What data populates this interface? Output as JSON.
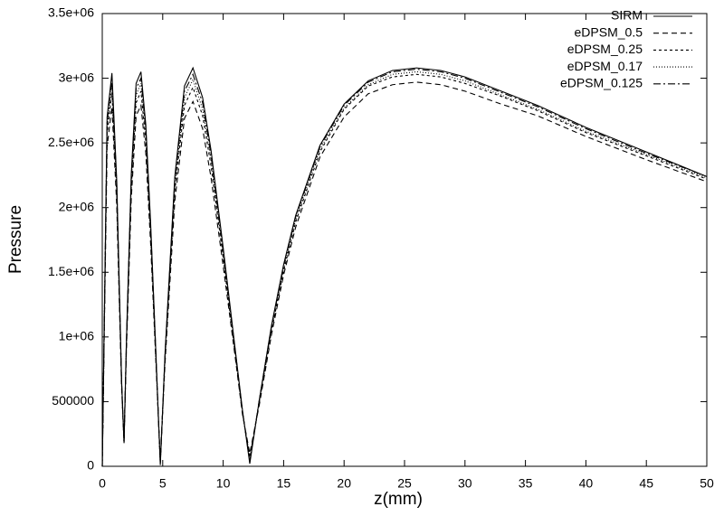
{
  "chart_data": {
    "type": "line",
    "x_label": "z(mm)",
    "y_label": "Pressure",
    "x": [
      0,
      0.4,
      0.8,
      1.2,
      1.6,
      1.8,
      2.0,
      2.4,
      2.8,
      3.2,
      3.6,
      4.0,
      4.4,
      4.8,
      5.2,
      6.0,
      6.8,
      7.5,
      8.3,
      9,
      10,
      11,
      11.6,
      12.2,
      13,
      14,
      15,
      16,
      18,
      20,
      22,
      24,
      26,
      28,
      30,
      33,
      36,
      40,
      45,
      50
    ],
    "series": [
      {
        "name": "SIRM",
        "color": "#000000",
        "dash": "none",
        "values": [
          0,
          2700000.0,
          3040000.0,
          2200000.0,
          660000.0,
          180000.0,
          980000.0,
          2260000.0,
          2960000.0,
          3050000.0,
          2640000.0,
          1880000.0,
          960000.0,
          10000.0,
          890000.0,
          2240000.0,
          2940000.0,
          3080000.0,
          2850000.0,
          2440000.0,
          1690000.0,
          900000.0,
          430000.0,
          20000.0,
          520000.0,
          1090000.0,
          1560000.0,
          1940000.0,
          2480000.0,
          2800000.0,
          2980000.0,
          3060000.0,
          3080000.0,
          3060000.0,
          3010000.0,
          2900000.0,
          2790000.0,
          2620000.0,
          2430000.0,
          2240000.0
        ]
      },
      {
        "name": "eDPSM_0.5",
        "color": "#000000",
        "dash": "6 4",
        "values": [
          0,
          2470000.0,
          2780000.0,
          2010000.0,
          600000.0,
          200000.0,
          900000.0,
          2070000.0,
          2710000.0,
          2790000.0,
          2420000.0,
          1720000.0,
          880000.0,
          50000.0,
          810000.0,
          2050000.0,
          2690000.0,
          2820000.0,
          2610000.0,
          2230000.0,
          1550000.0,
          840000.0,
          400000.0,
          100000.0,
          480000.0,
          1020000.0,
          1480000.0,
          1850000.0,
          2390000.0,
          2700000.0,
          2880000.0,
          2950000.0,
          2970000.0,
          2950000.0,
          2900000.0,
          2800000.0,
          2710000.0,
          2550000.0,
          2370000.0,
          2200000.0
        ]
      },
      {
        "name": "eDPSM_0.25",
        "color": "#000000",
        "dash": "3 3",
        "values": [
          0,
          2570000.0,
          2890000.0,
          2090000.0,
          630000.0,
          190000.0,
          930000.0,
          2150000.0,
          2810000.0,
          2900000.0,
          2510000.0,
          1790000.0,
          910000.0,
          30000.0,
          850000.0,
          2130000.0,
          2790000.0,
          2930000.0,
          2710000.0,
          2320000.0,
          1610000.0,
          860000.0,
          410000.0,
          70000.0,
          500000.0,
          1050000.0,
          1510000.0,
          1890000.0,
          2430000.0,
          2760000.0,
          2940000.0,
          3010000.0,
          3030000.0,
          3010000.0,
          2960000.0,
          2860000.0,
          2750000.0,
          2580000.0,
          2400000.0,
          2220000.0
        ]
      },
      {
        "name": "eDPSM_0.17",
        "color": "#000000",
        "dash": "1 2",
        "values": [
          0,
          2620000.0,
          2950000.0,
          2130000.0,
          640000.0,
          180000.0,
          950000.0,
          2190000.0,
          2870000.0,
          2960000.0,
          2560000.0,
          1820000.0,
          930000.0,
          20000.0,
          860000.0,
          2170000.0,
          2850000.0,
          2990000.0,
          2760000.0,
          2370000.0,
          1640000.0,
          880000.0,
          420000.0,
          50000.0,
          510000.0,
          1070000.0,
          1530000.0,
          1910000.0,
          2450000.0,
          2770000.0,
          2950000.0,
          3030000.0,
          3050000.0,
          3030000.0,
          2980000.0,
          2870000.0,
          2760000.0,
          2590000.0,
          2410000.0,
          2230000.0
        ]
      },
      {
        "name": "eDPSM_0.125",
        "color": "#000000",
        "dash": "8 3 2 3",
        "values": [
          0,
          2660000.0,
          2990000.0,
          2170000.0,
          650000.0,
          180000.0,
          970000.0,
          2230000.0,
          2920000.0,
          3000000.0,
          2600000.0,
          1850000.0,
          950000.0,
          20000.0,
          880000.0,
          2210000.0,
          2900000.0,
          3030000.0,
          2810000.0,
          2400000.0,
          1660000.0,
          890000.0,
          420000.0,
          40000.0,
          520000.0,
          1080000.0,
          1550000.0,
          1930000.0,
          2470000.0,
          2790000.0,
          2970000.0,
          3050000.0,
          3070000.0,
          3050000.0,
          3000000.0,
          2890000.0,
          2780000.0,
          2610000.0,
          2420000.0,
          2240000.0
        ]
      }
    ],
    "xlim": [
      0,
      50
    ],
    "xticks": [
      0,
      5,
      10,
      15,
      20,
      25,
      30,
      35,
      40,
      45,
      50
    ],
    "ylim": [
      0,
      3500000
    ],
    "yticks": [
      0,
      500000,
      {
        "value": 1000000,
        "label": "1e+06"
      },
      {
        "value": 1500000,
        "label": "1.5e+06"
      },
      {
        "value": 2000000,
        "label": "2e+06"
      },
      {
        "value": 2500000,
        "label": "2.5e+06"
      },
      {
        "value": 3000000,
        "label": "3e+06"
      },
      {
        "value": 3500000,
        "label": "3.5e+06"
      }
    ],
    "legend": "top-right",
    "grid": false
  }
}
